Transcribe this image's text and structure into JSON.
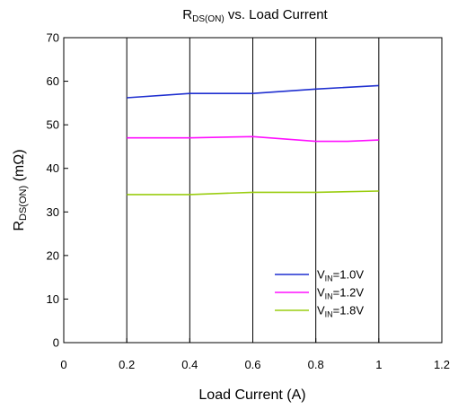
{
  "chart_data": {
    "type": "line",
    "title": "RDS(ON) vs. Load Current",
    "title_parts": {
      "main": "R",
      "sub": "DS(ON)",
      "rest": " vs. Load Current"
    },
    "xlabel": "Load Current (A)",
    "ylabel": "RDS(ON) (mΩ)",
    "ylabel_parts": {
      "main": "R",
      "sub": "DS(ON)",
      "rest": " (mΩ)"
    },
    "xlim": [
      0,
      1.2
    ],
    "ylim": [
      0,
      70
    ],
    "x_ticks": [
      0,
      0.2,
      0.4,
      0.6,
      0.8,
      1,
      1.2
    ],
    "x_tick_labels": [
      "0",
      "0.2",
      "0.4",
      "0.6",
      "0.8",
      "1",
      "1.2"
    ],
    "y_ticks": [
      0,
      10,
      20,
      30,
      40,
      50,
      60,
      70
    ],
    "y_tick_labels": [
      "0",
      "10",
      "20",
      "30",
      "40",
      "50",
      "60",
      "70"
    ],
    "grid": {
      "vertical": true,
      "horizontal": false
    },
    "legend": {
      "position": "bottom-right"
    },
    "series": [
      {
        "name": "VIN=1.0V",
        "label_parts": {
          "main": "V",
          "sub": "IN",
          "rest": "=1.0V"
        },
        "color": "#1f2fd0",
        "x": [
          0.2,
          0.4,
          0.6,
          0.8,
          1.0
        ],
        "y": [
          56.2,
          57.2,
          57.2,
          58.2,
          59.0
        ]
      },
      {
        "name": "VIN=1.2V",
        "label_parts": {
          "main": "V",
          "sub": "IN",
          "rest": "=1.2V"
        },
        "color": "#ff10ff",
        "x": [
          0.2,
          0.4,
          0.6,
          0.8,
          0.9,
          1.0
        ],
        "y": [
          47.0,
          47.0,
          47.3,
          46.2,
          46.2,
          46.5
        ]
      },
      {
        "name": "VIN=1.8V",
        "label_parts": {
          "main": "V",
          "sub": "IN",
          "rest": "=1.8V"
        },
        "color": "#9acd10",
        "x": [
          0.2,
          0.4,
          0.6,
          0.8,
          1.0
        ],
        "y": [
          34.0,
          34.0,
          34.5,
          34.5,
          34.8
        ]
      }
    ]
  }
}
